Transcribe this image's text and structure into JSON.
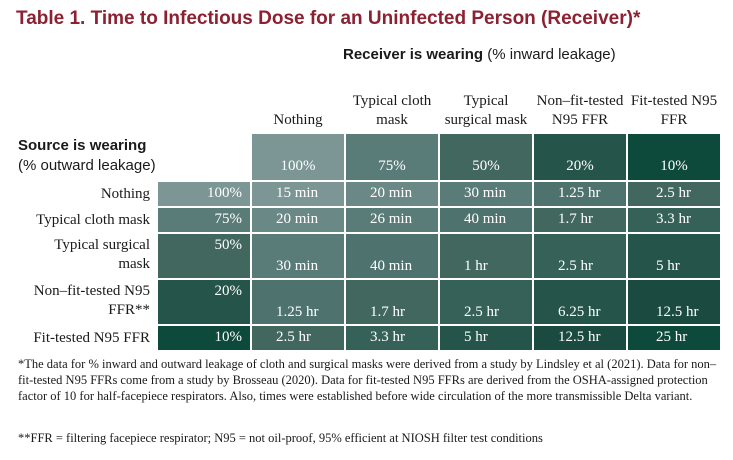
{
  "title": "Table 1. Time to Infectious Dose for an Uninfected Person (Receiver)*",
  "receiver_header": {
    "bold": "Receiver is wearing",
    "rest": " (% inward leakage)"
  },
  "source_header": {
    "bold": "Source is wearing",
    "rest": "(% outward leakage)"
  },
  "columns": [
    {
      "label": "Nothing",
      "pct": "100%"
    },
    {
      "label": "Typical cloth mask",
      "pct": "75%"
    },
    {
      "label": "Typical surgical mask",
      "pct": "50%"
    },
    {
      "label": "Non–fit-tested N95 FFR",
      "pct": "20%"
    },
    {
      "label": "Fit-tested N95 FFR",
      "pct": "10%"
    }
  ],
  "rows": [
    {
      "label": "Nothing",
      "pct": "100%",
      "cells": [
        "15 min",
        "20 min",
        "30 min",
        "1.25 hr",
        "2.5 hr"
      ]
    },
    {
      "label": "Typical cloth mask",
      "pct": "75%",
      "cells": [
        "20 min",
        "26 min",
        "40 min",
        "1.7 hr",
        "3.3 hr"
      ]
    },
    {
      "label": "Typical surgical mask",
      "pct": "50%",
      "cells": [
        "30 min",
        "40 min",
        "1 hr",
        "2.5 hr",
        "5 hr"
      ]
    },
    {
      "label": "Non–fit-tested N95 FFR**",
      "pct": "20%",
      "cells": [
        "1.25 hr",
        "1.7 hr",
        "2.5 hr",
        "6.25 hr",
        "12.5 hr"
      ]
    },
    {
      "label": "Fit-tested N95 FFR",
      "pct": "10%",
      "cells": [
        "2.5 hr",
        "3.3 hr",
        "5 hr",
        "12.5 hr",
        "25 hr"
      ]
    }
  ],
  "colors": {
    "title": "#8b2131",
    "palette": [
      "#7b9694",
      "#6a8986",
      "#5a7c79",
      "#4e736f",
      "#42675f",
      "#356158",
      "#25544a",
      "#1a4a40",
      "#0e4a3c"
    ]
  },
  "footnote_1": "*The data for % inward and outward leakage of cloth and surgical masks were derived from a study by Lindsley et al (2021). Data for non–fit-tested N95 FFRs come from a study by Brosseau (2020). Data for fit-tested N95 FFRs are derived from the OSHA-assigned protection factor of 10 for half-facepiece respirators. Also, times were established before wide circulation of the more transmissible Delta variant.",
  "footnote_2": "**FFR = filtering facepiece respirator; N95 = not oil-proof, 95% efficient at NIOSH filter test conditions"
}
